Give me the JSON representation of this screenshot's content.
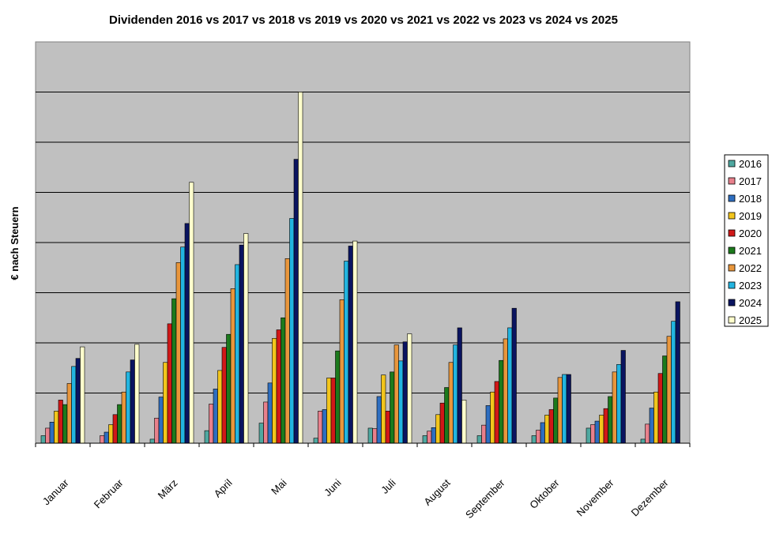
{
  "chart_data": {
    "type": "bar",
    "title": "Dividenden 2016 vs 2017 vs 2018 vs 2019 vs 2020 vs 2021 vs 2022 vs 2023 vs 2024 vs 2025",
    "xlabel": "",
    "ylabel": "€ nach Steuern",
    "ylim": [
      0,
      8
    ],
    "grid": true,
    "legend": "right",
    "categories": [
      "Januar",
      "Februar",
      "März",
      "April",
      "Mai",
      "Juni",
      "Juli",
      "August",
      "September",
      "Oktober",
      "November",
      "Dezember"
    ],
    "series": [
      {
        "name": "2016",
        "color": "#4FA8A0",
        "values": [
          0.15,
          0,
          0.08,
          0.25,
          0.4,
          0.1,
          0.3,
          0.15,
          0.15,
          0.15,
          0.3,
          0.08
        ]
      },
      {
        "name": "2017",
        "color": "#E8808C",
        "values": [
          0.3,
          0.15,
          0.5,
          0.78,
          0.82,
          0.64,
          0.29,
          0.24,
          0.36,
          0.26,
          0.37,
          0.38
        ]
      },
      {
        "name": "2018",
        "color": "#2E6EC0",
        "values": [
          0.42,
          0.22,
          0.92,
          1.08,
          1.2,
          0.67,
          0.93,
          0.31,
          0.75,
          0.41,
          0.44,
          0.7
        ]
      },
      {
        "name": "2019",
        "color": "#F2C51C",
        "values": [
          0.64,
          0.37,
          1.61,
          1.45,
          2.09,
          1.3,
          1.36,
          0.57,
          1.02,
          0.56,
          0.56,
          1.02
        ]
      },
      {
        "name": "2020",
        "color": "#D01818",
        "values": [
          0.86,
          0.57,
          2.38,
          1.91,
          2.26,
          1.3,
          0.64,
          0.8,
          1.23,
          0.67,
          0.69,
          1.39
        ]
      },
      {
        "name": "2021",
        "color": "#1C7A1C",
        "values": [
          0.77,
          0.77,
          2.88,
          2.17,
          2.5,
          1.84,
          1.42,
          1.11,
          1.65,
          0.9,
          0.93,
          1.74
        ]
      },
      {
        "name": "2022",
        "color": "#E8963C",
        "values": [
          1.19,
          1.02,
          3.6,
          3.08,
          3.68,
          2.86,
          1.96,
          1.61,
          2.08,
          1.31,
          1.42,
          2.13
        ]
      },
      {
        "name": "2023",
        "color": "#22B4E0",
        "values": [
          1.53,
          1.42,
          3.91,
          3.56,
          4.48,
          3.63,
          1.64,
          1.96,
          2.3,
          1.37,
          1.57,
          2.43
        ]
      },
      {
        "name": "2024",
        "color": "#0A1460",
        "values": [
          1.69,
          1.66,
          4.38,
          3.95,
          5.66,
          3.93,
          2.02,
          2.3,
          2.69,
          1.37,
          1.85,
          2.82
        ]
      },
      {
        "name": "2025",
        "color": "#FFFFCC",
        "values": [
          1.92,
          1.97,
          5.2,
          4.18,
          7.0,
          4.03,
          2.18,
          0.86,
          0,
          0,
          0,
          0
        ]
      }
    ]
  }
}
